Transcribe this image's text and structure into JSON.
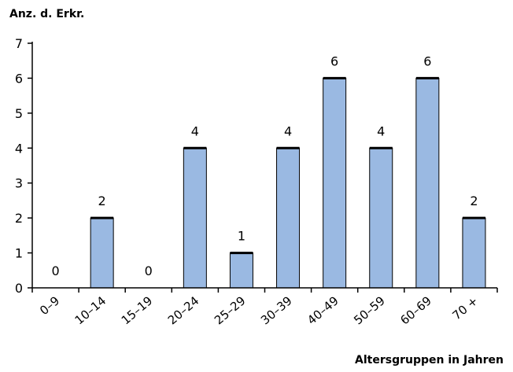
{
  "chart_data": {
    "type": "bar",
    "ylabel": "Anz. d. Erkr.",
    "xlabel": "Altersgruppen in Jahren",
    "categories": [
      "0–9",
      "10–14",
      "15–19",
      "20–24",
      "25–29",
      "30–39",
      "40–49",
      "50–59",
      "60–69",
      "70 +"
    ],
    "values": [
      0,
      2,
      0,
      4,
      1,
      4,
      6,
      4,
      6,
      2
    ],
    "data_labels": [
      "0",
      "2",
      "0",
      "4",
      "1",
      "4",
      "6",
      "4",
      "6",
      "2"
    ],
    "ylim": [
      0,
      7
    ],
    "yticks": [
      0,
      1,
      2,
      3,
      4,
      5,
      6,
      7
    ],
    "grid": false,
    "legend": "none",
    "colors": {
      "bar_fill": "#9ab9e2",
      "bar_stroke": "#000000",
      "bar_top": "#000000",
      "axis": "#000000"
    }
  }
}
